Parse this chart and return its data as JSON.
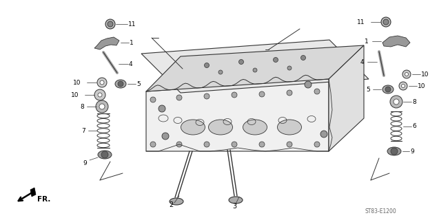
{
  "bg_color": "#ffffff",
  "line_color": "#333333",
  "fig_width": 6.37,
  "fig_height": 3.2,
  "dpi": 100,
  "watermark": "ST83-E1200",
  "fr_label": "FR."
}
